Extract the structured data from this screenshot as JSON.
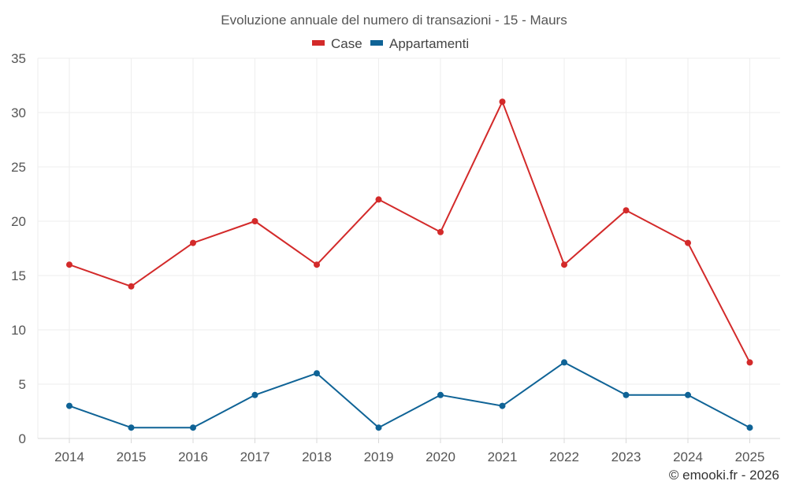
{
  "chart_data": {
    "type": "line",
    "title": "Evoluzione annuale del numero di transazioni - 15 - Maurs",
    "categories": [
      "2014",
      "2015",
      "2016",
      "2017",
      "2018",
      "2019",
      "2020",
      "2021",
      "2022",
      "2023",
      "2024",
      "2025"
    ],
    "series": [
      {
        "name": "Case",
        "color": "#d32a2a",
        "values": [
          16,
          14,
          18,
          20,
          16,
          22,
          19,
          31,
          16,
          21,
          18,
          7
        ]
      },
      {
        "name": "Appartamenti",
        "color": "#0f6396",
        "values": [
          3,
          1,
          1,
          4,
          6,
          1,
          4,
          3,
          7,
          4,
          4,
          1
        ]
      }
    ],
    "yticks": [
      "0",
      "5",
      "10",
      "15",
      "20",
      "25",
      "30",
      "35"
    ],
    "ylim": [
      0,
      35
    ],
    "xlabel": "",
    "ylabel": "",
    "grid": true,
    "legend": "top-center"
  },
  "credit": "© emooki.fr - 2026"
}
